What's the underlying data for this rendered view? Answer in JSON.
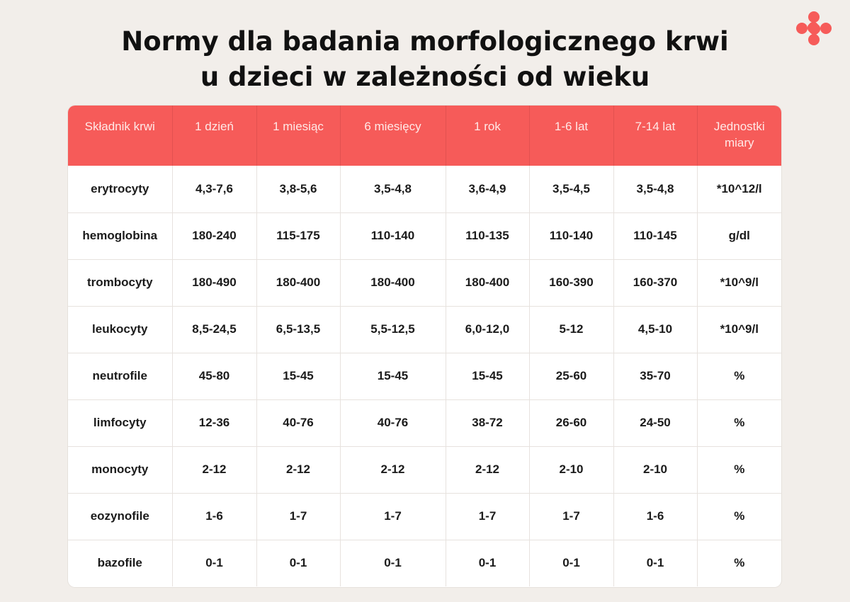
{
  "title": {
    "line1": "Normy dla badania morfologicznego krwi",
    "line2": "u dzieci w zależności od wieku"
  },
  "colors": {
    "accent": "#f65b59",
    "background": "#f2eeea"
  },
  "logo": {
    "icon": "red-dots-logo-icon"
  },
  "table": {
    "headers": [
      "Składnik krwi",
      "1 dzień",
      "1 miesiąc",
      "6 miesięcy",
      "1 rok",
      "1-6 lat",
      "7-14 lat",
      "Jednostki miary"
    ],
    "rows": [
      [
        "erytrocyty",
        "4,3-7,6",
        "3,8-5,6",
        "3,5-4,8",
        "3,6-4,9",
        "3,5-4,5",
        "3,5-4,8",
        "*10^12/l"
      ],
      [
        "hemoglobina",
        "180-240",
        "115-175",
        "110-140",
        "110-135",
        "110-140",
        "110-145",
        "g/dl"
      ],
      [
        "trombocyty",
        "180-490",
        "180-400",
        "180-400",
        "180-400",
        "160-390",
        "160-370",
        "*10^9/l"
      ],
      [
        "leukocyty",
        "8,5-24,5",
        "6,5-13,5",
        "5,5-12,5",
        "6,0-12,0",
        "5-12",
        "4,5-10",
        "*10^9/l"
      ],
      [
        "neutrofile",
        "45-80",
        "15-45",
        "15-45",
        "15-45",
        "25-60",
        "35-70",
        "%"
      ],
      [
        "limfocyty",
        "12-36",
        "40-76",
        "40-76",
        "38-72",
        "26-60",
        "24-50",
        "%"
      ],
      [
        "monocyty",
        "2-12",
        "2-12",
        "2-12",
        "2-12",
        "2-10",
        "2-10",
        "%"
      ],
      [
        "eozynofile",
        "1-6",
        "1-7",
        "1-7",
        "1-7",
        "1-7",
        "1-6",
        "%"
      ],
      [
        "bazofile",
        "0-1",
        "0-1",
        "0-1",
        "0-1",
        "0-1",
        "0-1",
        "%"
      ]
    ]
  }
}
